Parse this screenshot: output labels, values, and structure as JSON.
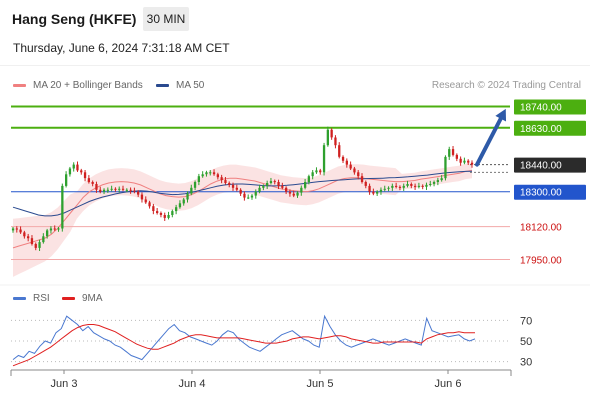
{
  "header": {
    "title": "Hang Seng (HKFE)",
    "interval": "30 MIN",
    "datetime": "Thursday, June 6, 2024 7:31:18 AM CET"
  },
  "legend": {
    "ma20": "MA 20 + Bollinger Bands",
    "ma50": "MA 50",
    "credit": "Research © 2024 Trading Central",
    "ma20_color": "#f08080",
    "ma50_color": "#2a4a8f"
  },
  "rsi_legend": {
    "rsi": "RSI",
    "ma": "9MA",
    "rsi_color": "#4a78d0",
    "ma_color": "#e02020"
  },
  "colors": {
    "up": "#2ea02e",
    "down": "#d02020",
    "support": "#f3a8a8",
    "resistance": "#4caf10",
    "pivot": "#2255cc",
    "current": "#2b2b2b",
    "arrow": "#2e5aa8",
    "band": "#fbe0e0"
  },
  "chart_data": [
    {
      "type": "candlestick",
      "title": "Hang Seng (HKFE)",
      "interval": "30 MIN",
      "ylim": [
        17900,
        18800
      ],
      "x_ticks": [
        "Jun 3",
        "Jun 4",
        "Jun 5",
        "Jun 6"
      ],
      "levels": [
        {
          "value": 18740,
          "label": "18740.00",
          "kind": "resistance"
        },
        {
          "value": 18630,
          "label": "18630.00",
          "kind": "resistance"
        },
        {
          "value": 18440,
          "label": "18440.00",
          "kind": "current"
        },
        {
          "value": 18300,
          "label": "18300.00",
          "kind": "pivot"
        },
        {
          "value": 18120,
          "label": "18120.00",
          "kind": "support"
        },
        {
          "value": 17950,
          "label": "17950.00",
          "kind": "support"
        }
      ],
      "close": [
        18110,
        18105,
        18090,
        18070,
        18060,
        18030,
        18010,
        18040,
        18070,
        18100,
        18110,
        18105,
        18110,
        18330,
        18390,
        18420,
        18440,
        18410,
        18400,
        18370,
        18350,
        18340,
        18310,
        18300,
        18310,
        18310,
        18315,
        18312,
        18315,
        18310,
        18310,
        18305,
        18300,
        18285,
        18260,
        18245,
        18225,
        18200,
        18190,
        18180,
        18165,
        18180,
        18200,
        18220,
        18240,
        18260,
        18290,
        18320,
        18350,
        18380,
        18390,
        18400,
        18400,
        18390,
        18375,
        18360,
        18345,
        18335,
        18320,
        18310,
        18290,
        18270,
        18270,
        18280,
        18300,
        18320,
        18330,
        18345,
        18355,
        18350,
        18330,
        18320,
        18300,
        18290,
        18280,
        18295,
        18320,
        18350,
        18380,
        18400,
        18410,
        18400,
        18540,
        18620,
        18580,
        18540,
        18480,
        18460,
        18440,
        18420,
        18400,
        18380,
        18350,
        18330,
        18300,
        18290,
        18300,
        18310,
        18315,
        18320,
        18330,
        18325,
        18320,
        18330,
        18340,
        18330,
        18325,
        18330,
        18325,
        18335,
        18340,
        18350,
        18360,
        18370,
        18480,
        18520,
        18490,
        18470,
        18450,
        18460,
        18450,
        18440
      ],
      "ma20": [
        18010,
        18020,
        18030,
        18040,
        18050,
        18060,
        18080,
        18110,
        18150,
        18190,
        18230,
        18270,
        18300,
        18320,
        18335,
        18345,
        18350,
        18352,
        18350,
        18345,
        18335,
        18320,
        18305,
        18290,
        18280,
        18275,
        18272,
        18275,
        18285,
        18300,
        18320,
        18340,
        18355,
        18365,
        18370,
        18370,
        18365,
        18360,
        18355,
        18345,
        18335,
        18325,
        18315,
        18310,
        18305,
        18302,
        18300,
        18305,
        18315,
        18330,
        18345,
        18360,
        18368,
        18372,
        18372,
        18370,
        18365,
        18362,
        18358,
        18355,
        18352,
        18352,
        18355,
        18358,
        18365,
        18370,
        18375,
        18380,
        18385,
        18390,
        18395,
        18405,
        18410
      ],
      "ma50": [
        18220,
        18210,
        18200,
        18190,
        18180,
        18175,
        18175,
        18180,
        18190,
        18205,
        18220,
        18235,
        18250,
        18262,
        18272,
        18280,
        18288,
        18295,
        18300,
        18303,
        18305,
        18303,
        18298,
        18292,
        18288,
        18285,
        18286,
        18290,
        18296,
        18304,
        18312,
        18320,
        18328,
        18334,
        18338,
        18340,
        18340,
        18338,
        18335,
        18332,
        18330,
        18330,
        18331,
        18333,
        18336,
        18340,
        18344,
        18348,
        18352,
        18355,
        18358,
        18360,
        18362,
        18364,
        18366,
        18367,
        18368,
        18369,
        18370,
        18372,
        18373,
        18375,
        18377,
        18380,
        18383,
        18386,
        18390,
        18394,
        18398,
        18401,
        18403,
        18405,
        18406
      ]
    },
    {
      "type": "line",
      "title": "RSI",
      "ylim": [
        20,
        80
      ],
      "y_ticks": [
        70,
        50,
        30
      ],
      "series": [
        {
          "name": "RSI",
          "values": [
            32,
            36,
            34,
            40,
            38,
            45,
            50,
            48,
            58,
            62,
            74,
            70,
            66,
            60,
            64,
            58,
            55,
            52,
            50,
            46,
            44,
            40,
            36,
            34,
            32,
            38,
            44,
            50,
            56,
            62,
            66,
            60,
            58,
            54,
            52,
            50,
            48,
            46,
            50,
            56,
            60,
            58,
            52,
            48,
            44,
            42,
            40,
            44,
            48,
            52,
            56,
            58,
            60,
            56,
            52,
            50,
            46,
            44,
            74,
            64,
            56,
            50,
            46,
            44,
            46,
            48,
            50,
            52,
            50,
            48,
            46,
            48,
            50,
            52,
            50,
            48,
            46,
            72,
            60,
            58,
            56,
            54,
            55,
            56,
            52,
            50,
            52
          ]
        },
        {
          "name": "9MA",
          "values": [
            26,
            28,
            30,
            32,
            35,
            38,
            41,
            44,
            48,
            52,
            56,
            60,
            63,
            65,
            66,
            66,
            65,
            63,
            61,
            59,
            56,
            53,
            50,
            47,
            45,
            43,
            42,
            42,
            44,
            46,
            48,
            51,
            53,
            55,
            56,
            56,
            55,
            54,
            53,
            53,
            53,
            53,
            53,
            52,
            51,
            50,
            49,
            48,
            48,
            48,
            49,
            50,
            52,
            53,
            54,
            54,
            53,
            52,
            53,
            54,
            55,
            55,
            54,
            52,
            51,
            50,
            49,
            48,
            48,
            49,
            49,
            49,
            49,
            49,
            49,
            49,
            48,
            52,
            54,
            56,
            57,
            58,
            58,
            59,
            58,
            58,
            58
          ]
        }
      ]
    }
  ]
}
